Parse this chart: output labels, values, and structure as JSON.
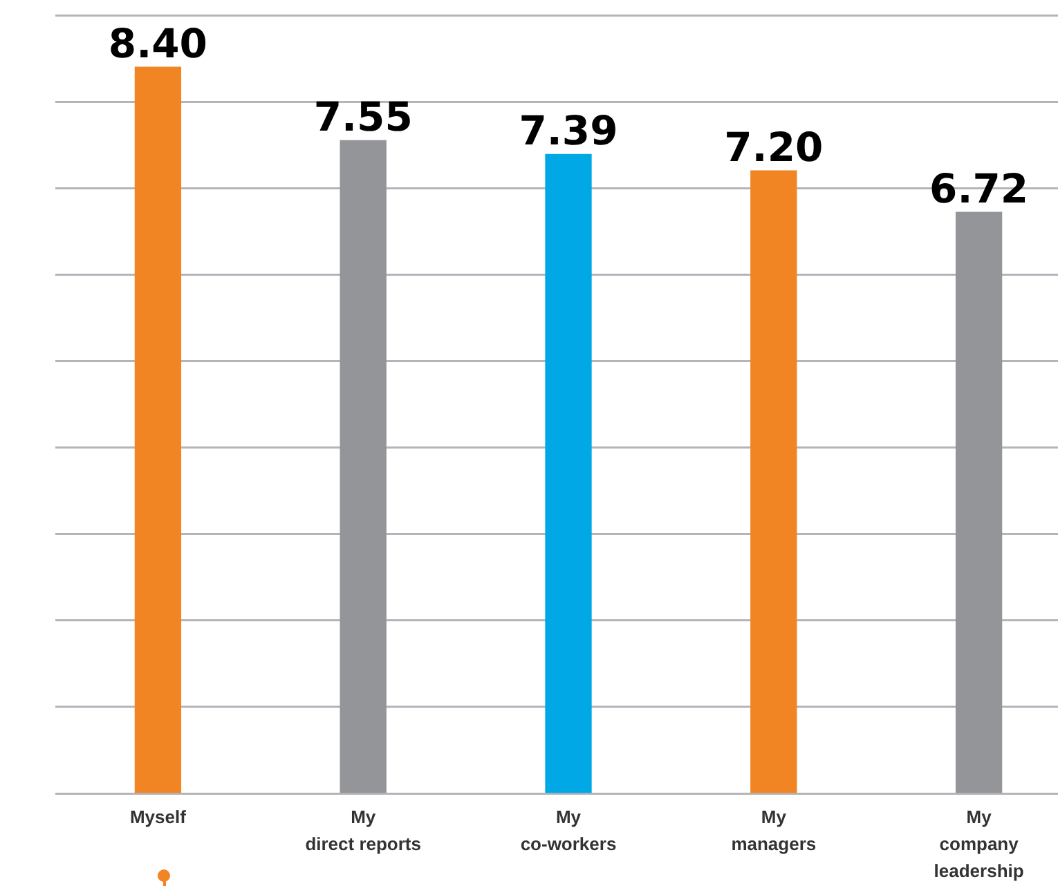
{
  "chart_data": {
    "type": "bar",
    "categories": [
      "Myself",
      "My\ndirect reports",
      "My\nco-workers",
      "My\nmanagers",
      "My\ncompany\nleadership"
    ],
    "values": [
      8.4,
      7.55,
      7.39,
      7.2,
      6.72
    ],
    "colors": [
      "#f28523",
      "#939598",
      "#00a9e6",
      "#f28523",
      "#939598"
    ],
    "value_labels": [
      "8.40",
      "7.55",
      "7.39",
      "7.20",
      "6.72"
    ],
    "ylim": [
      0,
      9
    ],
    "yticks": [
      {
        "value": 0,
        "label": null
      },
      {
        "value": 1,
        "label": null
      },
      {
        "value": 2,
        "label": null
      },
      {
        "value": 3,
        "label": null
      },
      {
        "value": 4,
        "label": null
      },
      {
        "value": 5,
        "label": null
      },
      {
        "value": 6,
        "label": null
      },
      {
        "value": 7,
        "label": null
      },
      {
        "value": 8,
        "label": null
      },
      {
        "value": 9,
        "label": null
      }
    ],
    "grid": "y",
    "tick_labels": "x",
    "legend": false
  }
}
